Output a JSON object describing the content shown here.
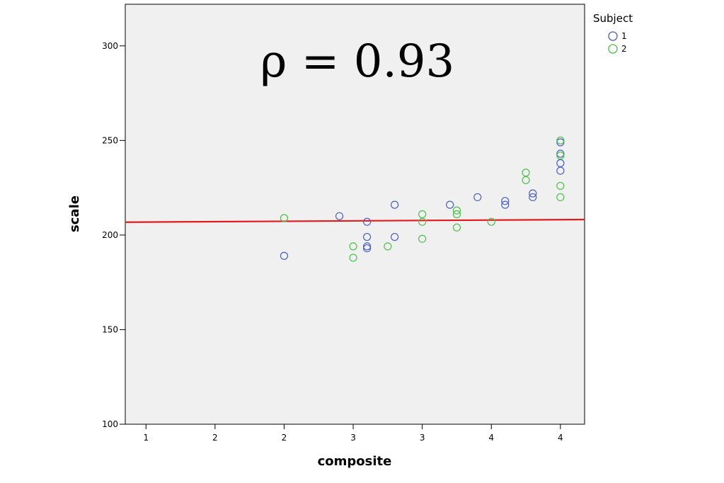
{
  "chart_data": {
    "type": "scatter",
    "xlabel": "composite",
    "ylabel": "scale",
    "xlim": [
      0.7,
      7.35
    ],
    "ylim": [
      100,
      322
    ],
    "x_ticks": [
      {
        "pos": 1,
        "label": "1"
      },
      {
        "pos": 2,
        "label": "2"
      },
      {
        "pos": 3,
        "label": "2"
      },
      {
        "pos": 4,
        "label": "3"
      },
      {
        "pos": 5,
        "label": "3"
      },
      {
        "pos": 6,
        "label": "4"
      },
      {
        "pos": 7,
        "label": "4"
      }
    ],
    "y_ticks": [
      100,
      150,
      200,
      250,
      300
    ],
    "annotation": "ρ = 0.93",
    "legend": {
      "title": "Subject",
      "position": "top-right outside"
    },
    "fit_line": {
      "color": "#e31a1c",
      "x0": 0.7,
      "y0": 206.8,
      "x1": 7.35,
      "y1": 208.2
    },
    "series": [
      {
        "name": "1",
        "color": "#4b5fbf",
        "points": [
          [
            3.0,
            189
          ],
          [
            3.8,
            210
          ],
          [
            4.2,
            207
          ],
          [
            4.2,
            199
          ],
          [
            4.2,
            194
          ],
          [
            4.2,
            193
          ],
          [
            4.6,
            216
          ],
          [
            4.6,
            199
          ],
          [
            5.4,
            216
          ],
          [
            5.8,
            220
          ],
          [
            6.2,
            218
          ],
          [
            6.2,
            216
          ],
          [
            6.6,
            222
          ],
          [
            6.6,
            220
          ],
          [
            7.0,
            249
          ],
          [
            7.0,
            243
          ],
          [
            7.0,
            238
          ],
          [
            7.0,
            234
          ]
        ]
      },
      {
        "name": "2",
        "color": "#4cbf4c",
        "points": [
          [
            3.0,
            209
          ],
          [
            4.0,
            194
          ],
          [
            4.0,
            188
          ],
          [
            4.5,
            194
          ],
          [
            5.0,
            211
          ],
          [
            5.0,
            207
          ],
          [
            5.0,
            198
          ],
          [
            5.5,
            213
          ],
          [
            5.5,
            211
          ],
          [
            5.5,
            204
          ],
          [
            6.0,
            207
          ],
          [
            6.5,
            233
          ],
          [
            6.5,
            229
          ],
          [
            7.0,
            250
          ],
          [
            7.0,
            242
          ],
          [
            7.0,
            226
          ],
          [
            7.0,
            220
          ]
        ]
      }
    ]
  }
}
